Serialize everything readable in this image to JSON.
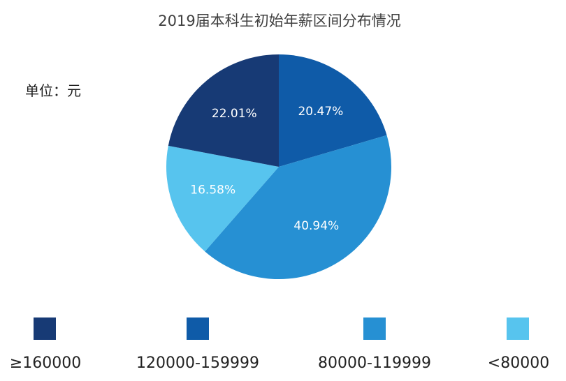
{
  "title": "2019届本科生初始年薪区间分布情况",
  "unit_label": "单位：元",
  "chart_data": {
    "type": "pie",
    "title": "2019届本科生初始年薪区间分布情况",
    "unit": "元",
    "categories": [
      "≥160000",
      "120000-159999",
      "80000-119999",
      "<80000"
    ],
    "values": [
      22.01,
      20.47,
      40.94,
      16.58
    ],
    "value_labels": [
      "22.01%",
      "20.47%",
      "40.94%",
      "16.58%"
    ],
    "colors": [
      "#173a75",
      "#0f5ba8",
      "#2690d3",
      "#57c4ee"
    ],
    "start_angle_deg": 0,
    "direction": "clockwise",
    "slice_order_from_top": [
      "120000-159999",
      "80000-119999",
      "<80000",
      "≥160000"
    ],
    "legend_position": "bottom"
  },
  "legend": [
    {
      "label": "≥160000",
      "color": "#173a75"
    },
    {
      "label": "120000-159999",
      "color": "#0f5ba8"
    },
    {
      "label": "80000-119999",
      "color": "#2690d3"
    },
    {
      "label": "<80000",
      "color": "#57c4ee"
    }
  ],
  "slices": [
    {
      "label": "20.47%",
      "color": "#0f5ba8"
    },
    {
      "label": "40.94%",
      "color": "#2690d3"
    },
    {
      "label": "16.58%",
      "color": "#57c4ee"
    },
    {
      "label": "22.01%",
      "color": "#173a75"
    }
  ]
}
